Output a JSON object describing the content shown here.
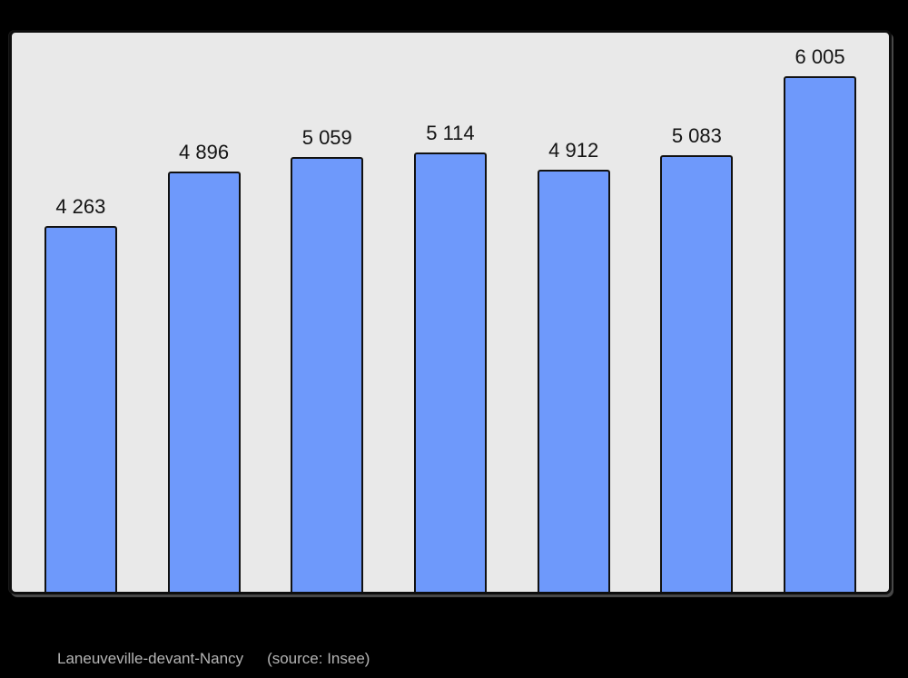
{
  "page": {
    "background": "#000000"
  },
  "chart_data": {
    "type": "bar",
    "title": "Laneuveville-devant-Nancy",
    "source_note": "(source: Insee)",
    "values": [
      4263,
      4896,
      5059,
      5114,
      4912,
      5083,
      6005
    ],
    "value_labels": [
      "4 263",
      "4 896",
      "5 059",
      "5 114",
      "4 912",
      "5 083",
      "6 005"
    ],
    "ylim": [
      0,
      6600
    ],
    "grid": false,
    "legend": false,
    "x_axis_labels_visible": false,
    "value_labels_position": "above-bars",
    "bar_color": "#6e99fb",
    "bar_border_color": "#111111",
    "plot_background": "#e9e9e9",
    "label_color": "#141414",
    "caption_color": "#b5b5b5"
  }
}
